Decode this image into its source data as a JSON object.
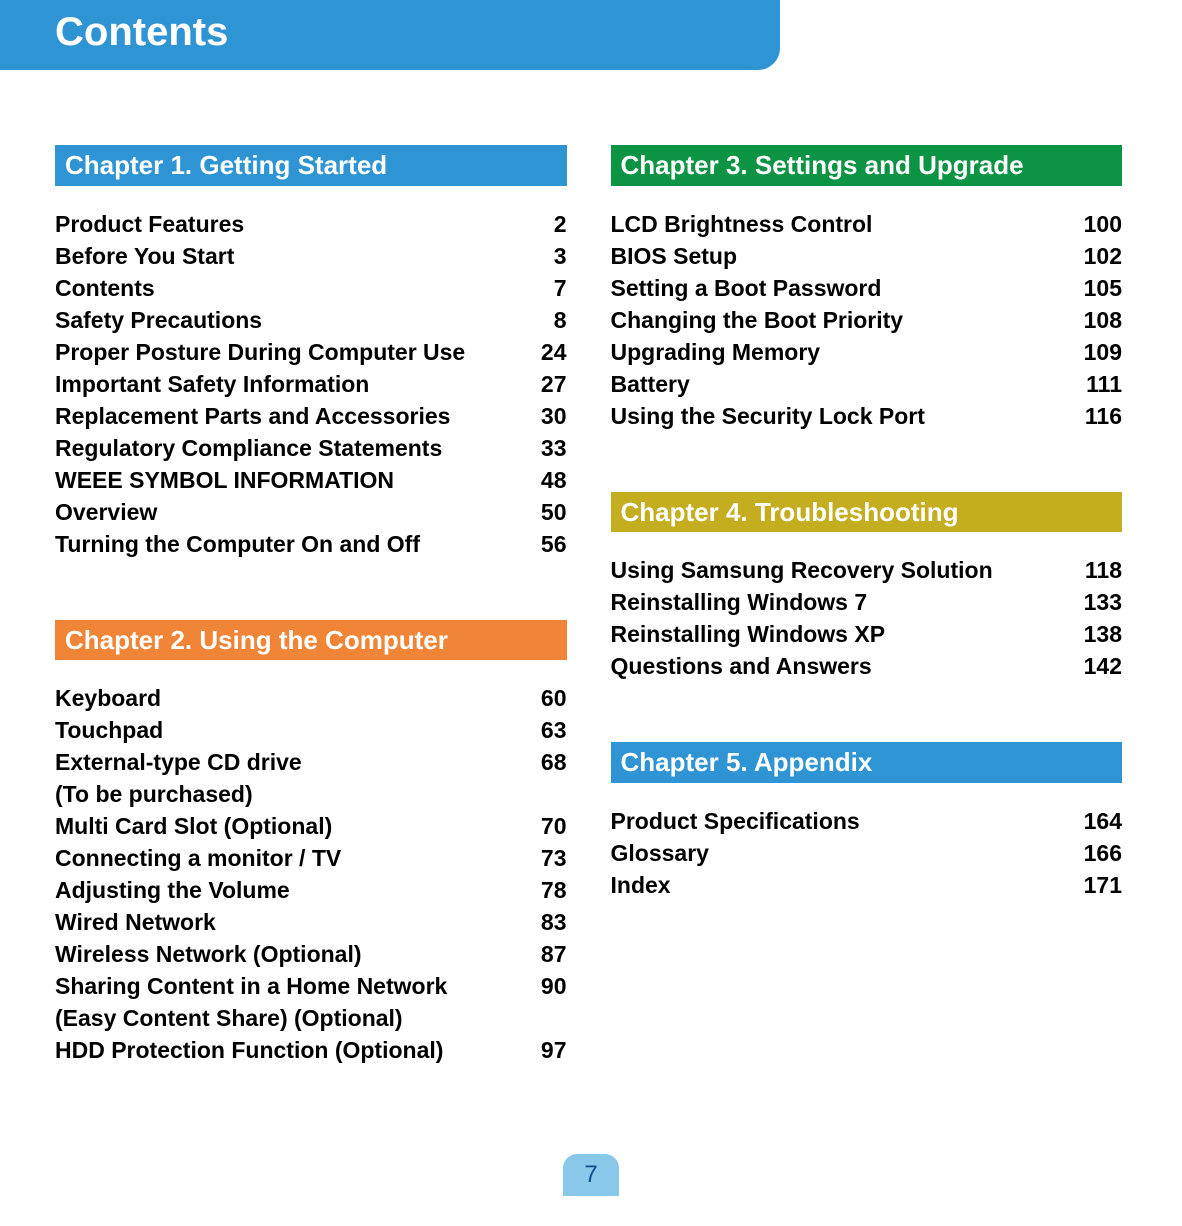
{
  "title": {
    "text": "Contents",
    "background": "#2e94d3",
    "color": "#ffffff"
  },
  "columns": [
    {
      "chapters": [
        {
          "id": "ch1",
          "title": "Chapter 1. Getting Started",
          "header_bg": "#2e94d3",
          "entries": [
            {
              "label": "Product Features",
              "page": "2"
            },
            {
              "label": "Before You Start",
              "page": "3"
            },
            {
              "label": "Contents",
              "page": "7"
            },
            {
              "label": "Safety Precautions",
              "page": "8"
            },
            {
              "label": "Proper Posture During Computer Use",
              "page": "24"
            },
            {
              "label": "Important Safety Information",
              "page": "27"
            },
            {
              "label": "Replacement Parts and Accessories",
              "page": "30"
            },
            {
              "label": "Regulatory Compliance Statements",
              "page": "33"
            },
            {
              "label": "WEEE SYMBOL INFORMATION",
              "page": "48"
            },
            {
              "label": "Overview",
              "page": "50"
            },
            {
              "label": "Turning the Computer On and Off",
              "page": "56"
            }
          ]
        },
        {
          "id": "ch2",
          "title": "Chapter 2. Using the Computer",
          "header_bg": "#f08437",
          "entries": [
            {
              "label": "Keyboard",
              "page": "60"
            },
            {
              "label": "Touchpad",
              "page": "63"
            },
            {
              "label": "External-type CD drive\n(To be purchased)",
              "page": "68"
            },
            {
              "label": "Multi Card Slot (Optional)",
              "page": "70"
            },
            {
              "label": "Connecting a monitor / TV",
              "page": "73"
            },
            {
              "label": "Adjusting the Volume",
              "page": "78"
            },
            {
              "label": "Wired Network",
              "page": "83"
            },
            {
              "label": "Wireless Network (Optional)",
              "page": "87"
            },
            {
              "label": "Sharing Content in a Home Network (Easy Content Share) (Optional)",
              "page": "90"
            },
            {
              "label": "HDD Protection Function (Optional)",
              "page": "97"
            }
          ]
        }
      ]
    },
    {
      "chapters": [
        {
          "id": "ch3",
          "title": "Chapter 3. Settings and Upgrade",
          "header_bg": "#0c9444",
          "entries": [
            {
              "label": "LCD Brightness Control",
              "page": "100"
            },
            {
              "label": "BIOS Setup",
              "page": "102"
            },
            {
              "label": "Setting a Boot Password",
              "page": "105"
            },
            {
              "label": "Changing the Boot Priority",
              "page": "108"
            },
            {
              "label": "Upgrading Memory",
              "page": "109"
            },
            {
              "label": "Battery",
              "page": "111"
            },
            {
              "label": "Using the Security Lock Port",
              "page": "116"
            }
          ]
        },
        {
          "id": "ch4",
          "title": "Chapter 4. Troubleshooting",
          "header_bg": "#c4ae20",
          "entries": [
            {
              "label": "Using Samsung Recovery Solution",
              "page": "118"
            },
            {
              "label": "Reinstalling Windows 7",
              "page": "133"
            },
            {
              "label": "Reinstalling Windows XP",
              "page": "138"
            },
            {
              "label": "Questions and Answers",
              "page": "142"
            }
          ]
        },
        {
          "id": "ch5",
          "title": "Chapter 5. Appendix",
          "header_bg": "#2e94d3",
          "entries": [
            {
              "label": "Product Specifications",
              "page": "164"
            },
            {
              "label": "Glossary",
              "page": "166"
            },
            {
              "label": "Index",
              "page": "171"
            }
          ]
        }
      ]
    }
  ],
  "page_badge": {
    "number": "7",
    "background": "#8ac8ea",
    "color": "#0a4f8a"
  }
}
